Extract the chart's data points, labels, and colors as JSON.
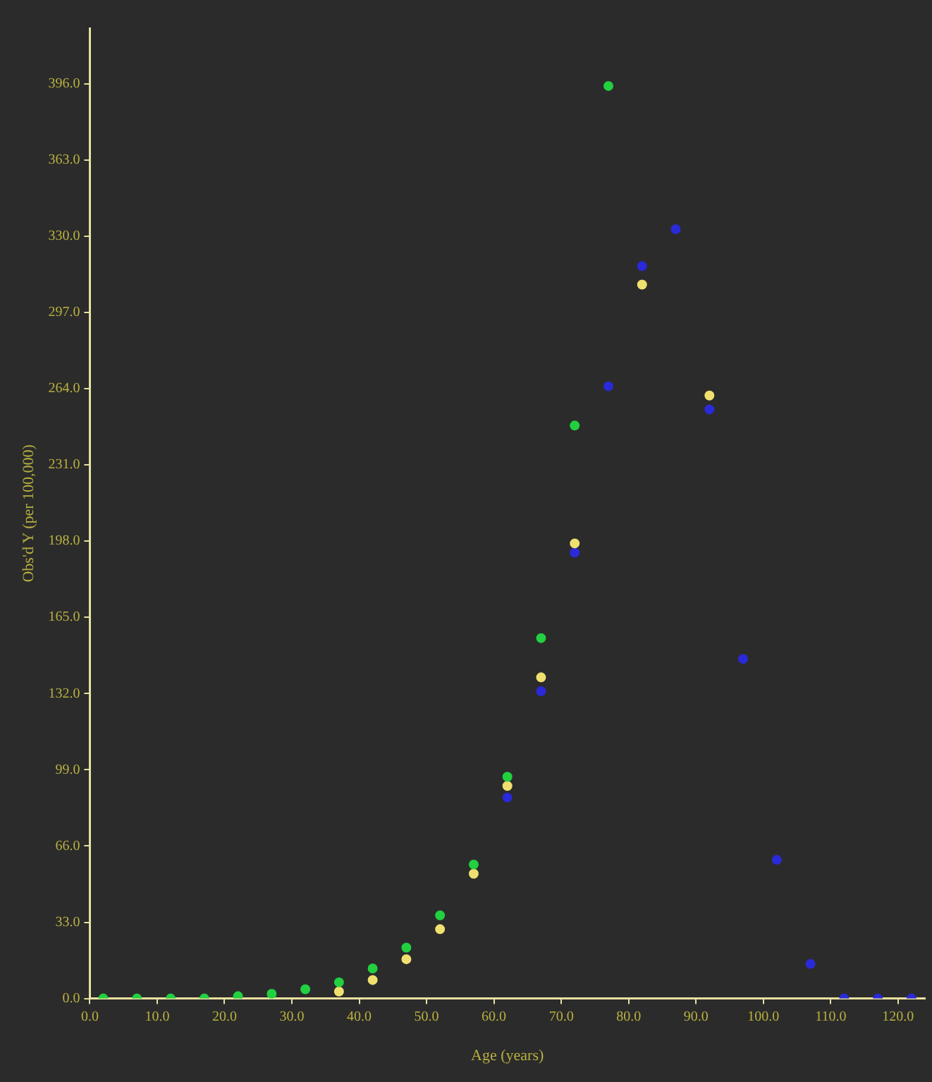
{
  "chart_data": {
    "type": "scatter",
    "xlabel": "Age (years)",
    "ylabel": "Obs'd Y (per 100,000)",
    "xlim": [
      0,
      124
    ],
    "ylim": [
      0,
      420
    ],
    "xticks": [
      {
        "value": 0,
        "label": "0.0"
      },
      {
        "value": 10,
        "label": "10.0"
      },
      {
        "value": 20,
        "label": "20.0"
      },
      {
        "value": 30,
        "label": "30.0"
      },
      {
        "value": 40,
        "label": "40.0"
      },
      {
        "value": 50,
        "label": "50.0"
      },
      {
        "value": 60,
        "label": "60.0"
      },
      {
        "value": 70,
        "label": "70.0"
      },
      {
        "value": 80,
        "label": "80.0"
      },
      {
        "value": 90,
        "label": "90.0"
      },
      {
        "value": 100,
        "label": "100.0"
      },
      {
        "value": 110,
        "label": "110.0"
      },
      {
        "value": 120,
        "label": "120.0"
      }
    ],
    "yticks": [
      {
        "value": 0,
        "label": "0.0"
      },
      {
        "value": 33,
        "label": "33.0"
      },
      {
        "value": 66,
        "label": "66.0"
      },
      {
        "value": 99,
        "label": "99.0"
      },
      {
        "value": 132,
        "label": "132.0"
      },
      {
        "value": 165,
        "label": "165.0"
      },
      {
        "value": 198,
        "label": "198.0"
      },
      {
        "value": 231,
        "label": "231.0"
      },
      {
        "value": 264,
        "label": "264.0"
      },
      {
        "value": 297,
        "label": "297.0"
      },
      {
        "value": 330,
        "label": "330.0"
      },
      {
        "value": 363,
        "label": "363.0"
      },
      {
        "value": 396,
        "label": "396.0"
      }
    ],
    "grid": false,
    "legend": false,
    "marker": "circle",
    "series": [
      {
        "color": "#22d040",
        "x": [
          2,
          7,
          12,
          17,
          22,
          27,
          32,
          37,
          42,
          47,
          52,
          57,
          62,
          67,
          72,
          77
        ],
        "values": [
          0,
          0,
          0,
          0,
          1,
          2,
          4,
          7,
          13,
          22,
          36,
          58,
          96,
          156,
          248,
          395
        ]
      },
      {
        "color": "#f0e070",
        "x": [
          37,
          42,
          47,
          52,
          57,
          62,
          67,
          72,
          82,
          92
        ],
        "values": [
          3,
          8,
          17,
          30,
          54,
          92,
          139,
          197,
          309,
          261
        ]
      },
      {
        "color": "#2a2ad8",
        "x": [
          62,
          67,
          72,
          77,
          82,
          87,
          92,
          97,
          102,
          107,
          112,
          117,
          122
        ],
        "values": [
          87,
          133,
          193,
          265,
          317,
          333,
          255,
          147,
          60,
          15,
          0,
          0,
          0
        ]
      }
    ]
  }
}
